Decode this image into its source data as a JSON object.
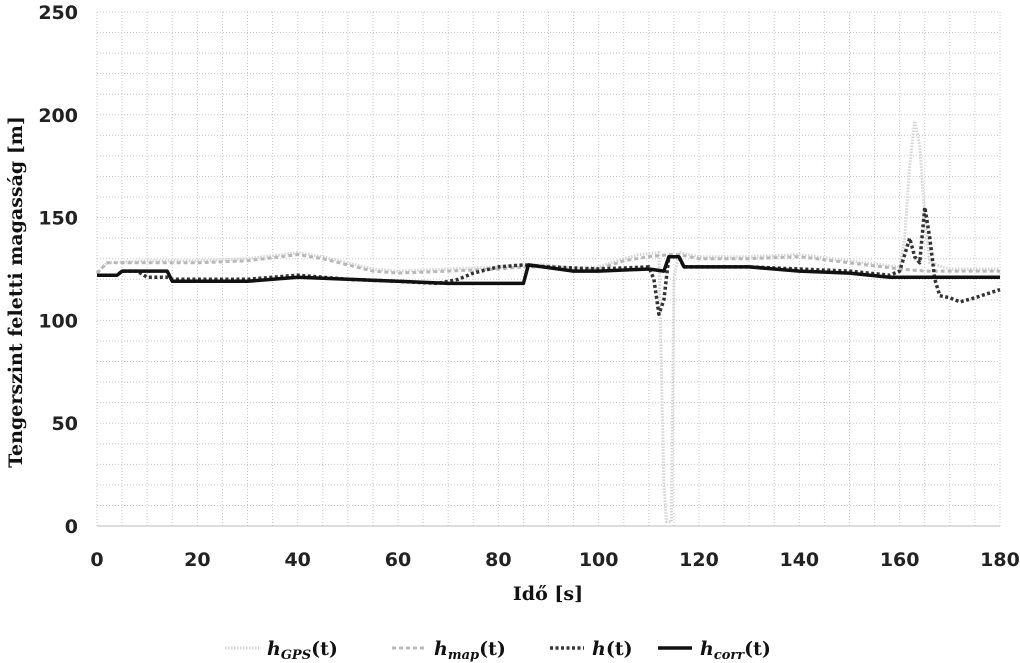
{
  "chart_data": {
    "type": "line",
    "xlabel": "Idő [s]",
    "ylabel": "Tengerszint feletti magasság [m]",
    "xlim": [
      0,
      180
    ],
    "ylim": [
      0,
      250
    ],
    "x_ticks": [
      0,
      20,
      40,
      60,
      80,
      100,
      120,
      140,
      160,
      180
    ],
    "y_ticks": [
      0,
      50,
      100,
      150,
      200,
      250
    ],
    "grid": true,
    "legend_position": "bottom",
    "series": [
      {
        "name": "h_GPS(t)",
        "legend_main": "h",
        "legend_sub": "GPS",
        "legend_arg": "(t)",
        "color": "#d4d4d4",
        "style": "dotted",
        "points": [
          [
            0,
            123
          ],
          [
            2,
            128
          ],
          [
            10,
            129
          ],
          [
            20,
            129
          ],
          [
            30,
            130
          ],
          [
            40,
            133
          ],
          [
            45,
            131
          ],
          [
            50,
            128
          ],
          [
            55,
            125
          ],
          [
            60,
            124
          ],
          [
            70,
            125
          ],
          [
            80,
            126
          ],
          [
            85,
            127
          ],
          [
            90,
            127
          ],
          [
            95,
            125
          ],
          [
            100,
            126
          ],
          [
            105,
            130
          ],
          [
            108,
            132
          ],
          [
            112,
            133
          ],
          [
            113,
            20
          ],
          [
            113.5,
            2
          ],
          [
            114.5,
            2
          ],
          [
            115,
            120
          ],
          [
            116,
            133
          ],
          [
            120,
            131
          ],
          [
            130,
            131
          ],
          [
            140,
            132
          ],
          [
            150,
            129
          ],
          [
            160,
            126
          ],
          [
            161,
            140
          ],
          [
            162,
            175
          ],
          [
            163,
            197
          ],
          [
            164,
            185
          ],
          [
            165,
            150
          ],
          [
            166,
            128
          ],
          [
            170,
            125
          ],
          [
            180,
            125
          ]
        ]
      },
      {
        "name": "h_map(t)",
        "legend_main": "h",
        "legend_sub": "map",
        "legend_arg": "(t)",
        "color": "#b8b8b8",
        "style": "dashed",
        "points": [
          [
            0,
            123
          ],
          [
            2,
            128
          ],
          [
            10,
            128
          ],
          [
            20,
            128
          ],
          [
            30,
            129
          ],
          [
            40,
            132
          ],
          [
            45,
            130
          ],
          [
            50,
            127
          ],
          [
            55,
            124
          ],
          [
            60,
            123
          ],
          [
            70,
            124
          ],
          [
            80,
            125
          ],
          [
            85,
            126
          ],
          [
            90,
            126
          ],
          [
            95,
            124
          ],
          [
            100,
            125
          ],
          [
            105,
            129
          ],
          [
            110,
            131
          ],
          [
            114,
            132
          ],
          [
            116,
            132
          ],
          [
            120,
            130
          ],
          [
            130,
            130
          ],
          [
            140,
            131
          ],
          [
            150,
            128
          ],
          [
            160,
            125
          ],
          [
            165,
            124
          ],
          [
            170,
            124
          ],
          [
            180,
            124
          ]
        ]
      },
      {
        "name": "h(t)",
        "legend_main": "h",
        "legend_sub": "",
        "legend_arg": "(t)",
        "color": "#333333",
        "style": "dotted-bold",
        "points": [
          [
            0,
            122
          ],
          [
            4,
            122
          ],
          [
            5,
            124
          ],
          [
            8,
            124
          ],
          [
            10,
            121
          ],
          [
            12,
            121
          ],
          [
            14,
            121
          ],
          [
            15,
            120
          ],
          [
            30,
            120
          ],
          [
            40,
            122
          ],
          [
            50,
            120
          ],
          [
            60,
            119
          ],
          [
            68,
            118
          ],
          [
            72,
            120
          ],
          [
            75,
            123
          ],
          [
            80,
            126
          ],
          [
            85,
            127
          ],
          [
            90,
            126
          ],
          [
            100,
            125
          ],
          [
            110,
            126
          ],
          [
            111,
            120
          ],
          [
            112,
            103
          ],
          [
            113,
            110
          ],
          [
            114,
            131
          ],
          [
            116,
            131
          ],
          [
            117,
            126
          ],
          [
            130,
            126
          ],
          [
            140,
            125
          ],
          [
            150,
            124
          ],
          [
            158,
            122
          ],
          [
            160,
            124
          ],
          [
            162,
            140
          ],
          [
            163,
            131
          ],
          [
            164,
            128
          ],
          [
            165,
            155
          ],
          [
            166,
            140
          ],
          [
            167,
            120
          ],
          [
            168,
            112
          ],
          [
            170,
            111
          ],
          [
            172,
            109
          ],
          [
            175,
            111
          ],
          [
            180,
            115
          ]
        ]
      },
      {
        "name": "h_corr(t)",
        "legend_main": "h",
        "legend_sub": "corr",
        "legend_arg": "(t)",
        "color": "#111111",
        "style": "solid",
        "points": [
          [
            0,
            122
          ],
          [
            4,
            122
          ],
          [
            5,
            124
          ],
          [
            14,
            124
          ],
          [
            15,
            119
          ],
          [
            30,
            119
          ],
          [
            40,
            121
          ],
          [
            50,
            120
          ],
          [
            60,
            119
          ],
          [
            70,
            118
          ],
          [
            85,
            118
          ],
          [
            86,
            127
          ],
          [
            95,
            124
          ],
          [
            100,
            124
          ],
          [
            110,
            125
          ],
          [
            113,
            124
          ],
          [
            114,
            131
          ],
          [
            116,
            131
          ],
          [
            117,
            126
          ],
          [
            130,
            126
          ],
          [
            140,
            124
          ],
          [
            150,
            123
          ],
          [
            158,
            121
          ],
          [
            170,
            121
          ],
          [
            180,
            121
          ]
        ]
      }
    ]
  }
}
